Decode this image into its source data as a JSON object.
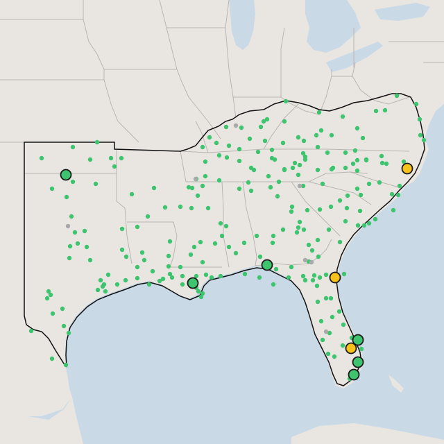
{
  "map": {
    "colors": {
      "water": "#c9d9e6",
      "land": "#e9e6e2",
      "state_border": "#b9b5b1",
      "region_outline": "#111111",
      "small_marker": "#3ec46e",
      "large_marker_green": "#3ec46e",
      "large_marker_yellow": "#f7c21c",
      "marker_stroke": "#1a1a1a",
      "gray_marker": "#a9a9a9"
    },
    "large_markers": [
      {
        "id": "ok-west",
        "status": "green"
      },
      {
        "id": "la-coast",
        "status": "green"
      },
      {
        "id": "fl-panhandle",
        "status": "green"
      },
      {
        "id": "nc-east",
        "status": "yellow"
      },
      {
        "id": "fl-jacksonville",
        "status": "yellow"
      },
      {
        "id": "fl-east-1",
        "status": "green"
      },
      {
        "id": "fl-east-2",
        "status": "yellow"
      },
      {
        "id": "fl-east-3",
        "status": "green"
      },
      {
        "id": "fl-south",
        "status": "green"
      }
    ]
  }
}
